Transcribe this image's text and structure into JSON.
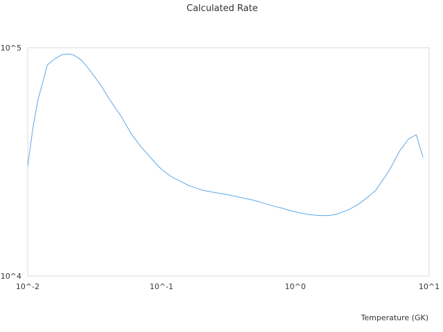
{
  "chart_data": {
    "type": "line",
    "title": "Calculated Rate",
    "xlabel": "Temperature (GK)",
    "ylabel": "",
    "x_scale": "log",
    "y_scale": "log",
    "xlim": [
      0.01,
      10
    ],
    "ylim": [
      10000,
      100000
    ],
    "x_ticks": [
      "10^-2",
      "10^-1",
      "10^0",
      "10^1"
    ],
    "y_ticks": [
      "10^4",
      "10^5"
    ],
    "grid": false,
    "line_color": "#5aa7e8",
    "series": [
      {
        "x": [
          0.01,
          0.011,
          0.012,
          0.013,
          0.014,
          0.016,
          0.018,
          0.02,
          0.022,
          0.025,
          0.028,
          0.032,
          0.036,
          0.04,
          0.045,
          0.05,
          0.06,
          0.07,
          0.08,
          0.09,
          0.1,
          0.12,
          0.14,
          0.16,
          0.18,
          0.2,
          0.25,
          0.3,
          0.35,
          0.4,
          0.45,
          0.5,
          0.6,
          0.7,
          0.8,
          0.9,
          1.0,
          1.25,
          1.5,
          1.75,
          2.0,
          2.5,
          3.0,
          3.5,
          4.0,
          5.0,
          6.0,
          7.0,
          8.0,
          9.0
        ],
        "y": [
          30400,
          45500,
          60000,
          71000,
          84000,
          89500,
          93200,
          93900,
          93000,
          88600,
          82000,
          74000,
          67000,
          60600,
          54700,
          50000,
          41600,
          36900,
          33800,
          31300,
          29300,
          27100,
          25900,
          24900,
          24300,
          23800,
          23200,
          22800,
          22400,
          22000,
          21700,
          21400,
          20700,
          20200,
          19800,
          19400,
          19100,
          18600,
          18400,
          18400,
          18600,
          19500,
          20700,
          22200,
          23800,
          28800,
          35200,
          39800,
          41600,
          33000
        ]
      }
    ]
  }
}
